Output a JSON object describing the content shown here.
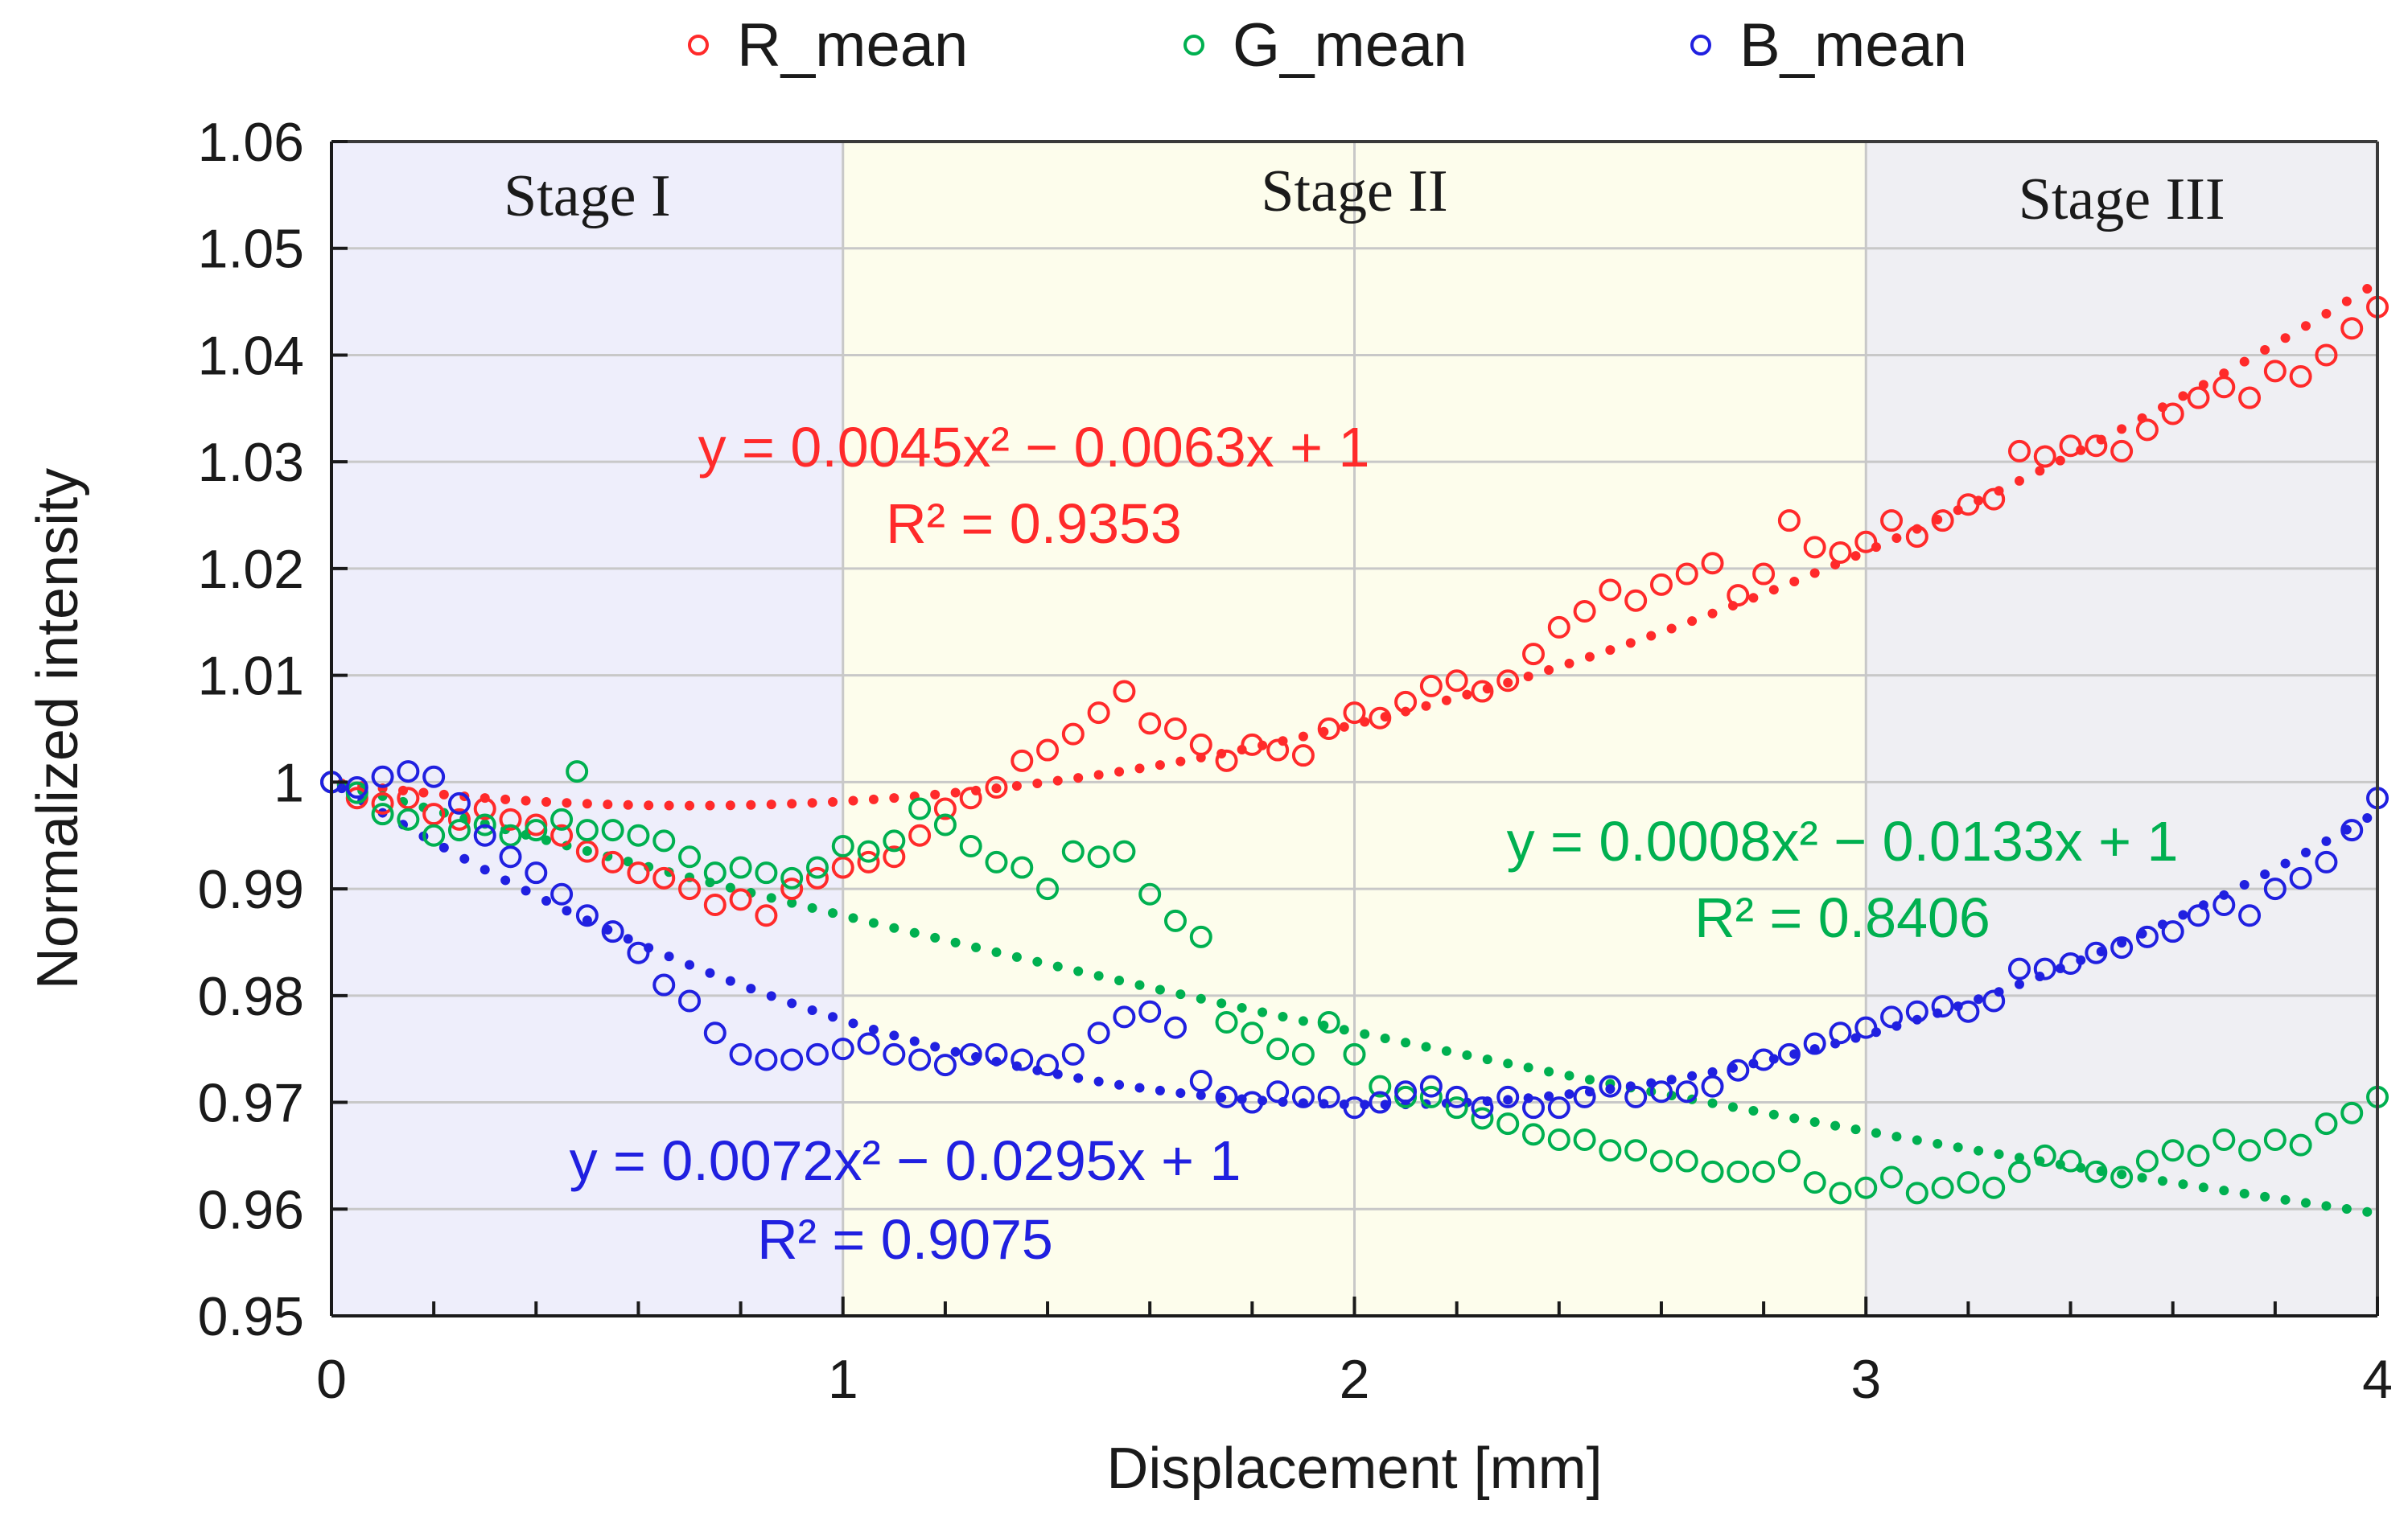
{
  "chart_data": {
    "type": "scatter",
    "title": "",
    "xlabel": "Displacement [mm]",
    "ylabel": "Normalized intensity",
    "xlim": [
      0,
      4
    ],
    "ylim": [
      0.95,
      1.06
    ],
    "x_ticks": [
      0,
      1,
      2,
      3,
      4
    ],
    "x_minor_step": 0.2,
    "y_ticks": [
      0.95,
      0.96,
      0.97,
      0.98,
      0.99,
      1,
      1.01,
      1.02,
      1.03,
      1.04,
      1.05,
      1.06
    ],
    "y_tick_labels": [
      "0.95",
      "0.96",
      "0.97",
      "0.98",
      "0.99",
      "1",
      "1.01",
      "1.02",
      "1.03",
      "1.04",
      "1.05",
      "1.06"
    ],
    "grid": true,
    "legend_position": "top-center",
    "stages": [
      {
        "label": "Stage I",
        "from": 0,
        "to": 1,
        "color": "#eeeefb"
      },
      {
        "label": "Stage II",
        "from": 1,
        "to": 3,
        "color": "#fdfdec"
      },
      {
        "label": "Stage III",
        "from": 3,
        "to": 4,
        "color": "#efeff3"
      }
    ],
    "series": [
      {
        "name": "R_mean",
        "color": "#ff2a2a",
        "fit": {
          "a": 0.0045,
          "b": -0.0063,
          "c": 1
        },
        "equation": "y = 0.0045x² − 0.0063x + 1",
        "r2": "R² = 0.9353",
        "points": [
          [
            0,
            1.0
          ],
          [
            0.05,
            0.9985
          ],
          [
            0.1,
            0.998
          ],
          [
            0.15,
            0.9985
          ],
          [
            0.2,
            0.997
          ],
          [
            0.25,
            0.9965
          ],
          [
            0.3,
            0.9975
          ],
          [
            0.35,
            0.9965
          ],
          [
            0.4,
            0.996
          ],
          [
            0.45,
            0.995
          ],
          [
            0.5,
            0.9935
          ],
          [
            0.55,
            0.9925
          ],
          [
            0.6,
            0.9915
          ],
          [
            0.65,
            0.991
          ],
          [
            0.7,
            0.99
          ],
          [
            0.75,
            0.9885
          ],
          [
            0.8,
            0.989
          ],
          [
            0.85,
            0.9875
          ],
          [
            0.9,
            0.99
          ],
          [
            0.95,
            0.991
          ],
          [
            1.0,
            0.992
          ],
          [
            1.05,
            0.9925
          ],
          [
            1.1,
            0.993
          ],
          [
            1.15,
            0.995
          ],
          [
            1.2,
            0.9975
          ],
          [
            1.25,
            0.9985
          ],
          [
            1.3,
            0.9995
          ],
          [
            1.35,
            1.002
          ],
          [
            1.4,
            1.003
          ],
          [
            1.45,
            1.0045
          ],
          [
            1.5,
            1.0065
          ],
          [
            1.55,
            1.0085
          ],
          [
            1.6,
            1.0055
          ],
          [
            1.65,
            1.005
          ],
          [
            1.7,
            1.0035
          ],
          [
            1.75,
            1.002
          ],
          [
            1.8,
            1.0035
          ],
          [
            1.85,
            1.003
          ],
          [
            1.9,
            1.0025
          ],
          [
            1.95,
            1.005
          ],
          [
            2.0,
            1.0065
          ],
          [
            2.05,
            1.006
          ],
          [
            2.1,
            1.0075
          ],
          [
            2.15,
            1.009
          ],
          [
            2.2,
            1.0095
          ],
          [
            2.25,
            1.0085
          ],
          [
            2.3,
            1.0095
          ],
          [
            2.35,
            1.012
          ],
          [
            2.4,
            1.0145
          ],
          [
            2.45,
            1.016
          ],
          [
            2.5,
            1.018
          ],
          [
            2.55,
            1.017
          ],
          [
            2.6,
            1.0185
          ],
          [
            2.65,
            1.0195
          ],
          [
            2.7,
            1.0205
          ],
          [
            2.75,
            1.0175
          ],
          [
            2.8,
            1.0195
          ],
          [
            2.85,
            1.0245
          ],
          [
            2.9,
            1.022
          ],
          [
            2.95,
            1.0215
          ],
          [
            3.0,
            1.0225
          ],
          [
            3.05,
            1.0245
          ],
          [
            3.1,
            1.023
          ],
          [
            3.15,
            1.0245
          ],
          [
            3.2,
            1.026
          ],
          [
            3.25,
            1.0265
          ],
          [
            3.3,
            1.031
          ],
          [
            3.35,
            1.0305
          ],
          [
            3.4,
            1.0315
          ],
          [
            3.45,
            1.0315
          ],
          [
            3.5,
            1.031
          ],
          [
            3.55,
            1.033
          ],
          [
            3.6,
            1.0345
          ],
          [
            3.65,
            1.036
          ],
          [
            3.7,
            1.037
          ],
          [
            3.75,
            1.036
          ],
          [
            3.8,
            1.0385
          ],
          [
            3.85,
            1.038
          ],
          [
            3.9,
            1.04
          ],
          [
            3.95,
            1.0425
          ],
          [
            4.0,
            1.0445
          ]
        ]
      },
      {
        "name": "G_mean",
        "color": "#00b050",
        "fit": {
          "a": 0.0008,
          "b": -0.0133,
          "c": 1
        },
        "equation": "y = 0.0008x² − 0.0133x + 1",
        "r2": "R² = 0.8406",
        "points": [
          [
            0,
            1.0
          ],
          [
            0.05,
            0.999
          ],
          [
            0.1,
            0.997
          ],
          [
            0.15,
            0.9965
          ],
          [
            0.2,
            0.995
          ],
          [
            0.25,
            0.9955
          ],
          [
            0.3,
            0.996
          ],
          [
            0.35,
            0.995
          ],
          [
            0.4,
            0.9955
          ],
          [
            0.45,
            0.9965
          ],
          [
            0.48,
            1.001
          ],
          [
            0.5,
            0.9955
          ],
          [
            0.55,
            0.9955
          ],
          [
            0.6,
            0.995
          ],
          [
            0.65,
            0.9945
          ],
          [
            0.7,
            0.993
          ],
          [
            0.75,
            0.9915
          ],
          [
            0.8,
            0.992
          ],
          [
            0.85,
            0.9915
          ],
          [
            0.9,
            0.991
          ],
          [
            0.95,
            0.992
          ],
          [
            1.0,
            0.994
          ],
          [
            1.05,
            0.9935
          ],
          [
            1.1,
            0.9945
          ],
          [
            1.15,
            0.9975
          ],
          [
            1.2,
            0.996
          ],
          [
            1.25,
            0.994
          ],
          [
            1.3,
            0.9925
          ],
          [
            1.35,
            0.992
          ],
          [
            1.4,
            0.99
          ],
          [
            1.45,
            0.9935
          ],
          [
            1.5,
            0.993
          ],
          [
            1.55,
            0.9935
          ],
          [
            1.6,
            0.9895
          ],
          [
            1.65,
            0.987
          ],
          [
            1.7,
            0.9855
          ],
          [
            1.75,
            0.9775
          ],
          [
            1.8,
            0.9765
          ],
          [
            1.85,
            0.975
          ],
          [
            1.9,
            0.9745
          ],
          [
            1.95,
            0.9775
          ],
          [
            2.0,
            0.9745
          ],
          [
            2.05,
            0.9715
          ],
          [
            2.1,
            0.9705
          ],
          [
            2.15,
            0.9705
          ],
          [
            2.2,
            0.9695
          ],
          [
            2.25,
            0.9685
          ],
          [
            2.3,
            0.968
          ],
          [
            2.35,
            0.967
          ],
          [
            2.4,
            0.9665
          ],
          [
            2.45,
            0.9665
          ],
          [
            2.5,
            0.9655
          ],
          [
            2.55,
            0.9655
          ],
          [
            2.6,
            0.9645
          ],
          [
            2.65,
            0.9645
          ],
          [
            2.7,
            0.9635
          ],
          [
            2.75,
            0.9635
          ],
          [
            2.8,
            0.9635
          ],
          [
            2.85,
            0.9645
          ],
          [
            2.9,
            0.9625
          ],
          [
            2.95,
            0.9615
          ],
          [
            3.0,
            0.962
          ],
          [
            3.05,
            0.963
          ],
          [
            3.1,
            0.9615
          ],
          [
            3.15,
            0.962
          ],
          [
            3.2,
            0.9625
          ],
          [
            3.25,
            0.962
          ],
          [
            3.3,
            0.9635
          ],
          [
            3.35,
            0.965
          ],
          [
            3.4,
            0.9645
          ],
          [
            3.45,
            0.9635
          ],
          [
            3.5,
            0.963
          ],
          [
            3.55,
            0.9645
          ],
          [
            3.6,
            0.9655
          ],
          [
            3.65,
            0.965
          ],
          [
            3.7,
            0.9665
          ],
          [
            3.75,
            0.9655
          ],
          [
            3.8,
            0.9665
          ],
          [
            3.85,
            0.966
          ],
          [
            3.9,
            0.968
          ],
          [
            3.95,
            0.969
          ],
          [
            4.0,
            0.9705
          ]
        ]
      },
      {
        "name": "B_mean",
        "color": "#2020e0",
        "fit": {
          "a": 0.0072,
          "b": -0.0295,
          "c": 1
        },
        "equation": "y = 0.0072x² − 0.0295x + 1",
        "r2": "R² = 0.9075",
        "points": [
          [
            0,
            1.0
          ],
          [
            0.05,
            0.9995
          ],
          [
            0.1,
            1.0005
          ],
          [
            0.15,
            1.001
          ],
          [
            0.2,
            1.0005
          ],
          [
            0.25,
            0.998
          ],
          [
            0.3,
            0.995
          ],
          [
            0.35,
            0.993
          ],
          [
            0.4,
            0.9915
          ],
          [
            0.45,
            0.9895
          ],
          [
            0.5,
            0.9875
          ],
          [
            0.55,
            0.986
          ],
          [
            0.6,
            0.984
          ],
          [
            0.65,
            0.981
          ],
          [
            0.7,
            0.9795
          ],
          [
            0.75,
            0.9765
          ],
          [
            0.8,
            0.9745
          ],
          [
            0.85,
            0.974
          ],
          [
            0.9,
            0.974
          ],
          [
            0.95,
            0.9745
          ],
          [
            1.0,
            0.975
          ],
          [
            1.05,
            0.9755
          ],
          [
            1.1,
            0.9745
          ],
          [
            1.15,
            0.974
          ],
          [
            1.2,
            0.9735
          ],
          [
            1.25,
            0.9745
          ],
          [
            1.3,
            0.9745
          ],
          [
            1.35,
            0.974
          ],
          [
            1.4,
            0.9735
          ],
          [
            1.45,
            0.9745
          ],
          [
            1.5,
            0.9765
          ],
          [
            1.55,
            0.978
          ],
          [
            1.6,
            0.9785
          ],
          [
            1.65,
            0.977
          ],
          [
            1.7,
            0.972
          ],
          [
            1.75,
            0.9705
          ],
          [
            1.8,
            0.97
          ],
          [
            1.85,
            0.971
          ],
          [
            1.9,
            0.9705
          ],
          [
            1.95,
            0.9705
          ],
          [
            2.0,
            0.9695
          ],
          [
            2.05,
            0.97
          ],
          [
            2.1,
            0.971
          ],
          [
            2.15,
            0.9715
          ],
          [
            2.2,
            0.9705
          ],
          [
            2.25,
            0.9695
          ],
          [
            2.3,
            0.9705
          ],
          [
            2.35,
            0.9695
          ],
          [
            2.4,
            0.9695
          ],
          [
            2.45,
            0.9705
          ],
          [
            2.5,
            0.9715
          ],
          [
            2.55,
            0.9705
          ],
          [
            2.6,
            0.971
          ],
          [
            2.65,
            0.971
          ],
          [
            2.7,
            0.9715
          ],
          [
            2.75,
            0.973
          ],
          [
            2.8,
            0.974
          ],
          [
            2.85,
            0.9745
          ],
          [
            2.9,
            0.9755
          ],
          [
            2.95,
            0.9765
          ],
          [
            3.0,
            0.977
          ],
          [
            3.05,
            0.978
          ],
          [
            3.1,
            0.9785
          ],
          [
            3.15,
            0.979
          ],
          [
            3.2,
            0.9785
          ],
          [
            3.25,
            0.9795
          ],
          [
            3.3,
            0.9825
          ],
          [
            3.35,
            0.9825
          ],
          [
            3.4,
            0.983
          ],
          [
            3.45,
            0.984
          ],
          [
            3.5,
            0.9845
          ],
          [
            3.55,
            0.9855
          ],
          [
            3.6,
            0.986
          ],
          [
            3.65,
            0.9875
          ],
          [
            3.7,
            0.9885
          ],
          [
            3.75,
            0.9875
          ],
          [
            3.8,
            0.99
          ],
          [
            3.85,
            0.991
          ],
          [
            3.9,
            0.9925
          ],
          [
            3.95,
            0.9955
          ],
          [
            4.0,
            0.9985
          ]
        ]
      }
    ]
  }
}
